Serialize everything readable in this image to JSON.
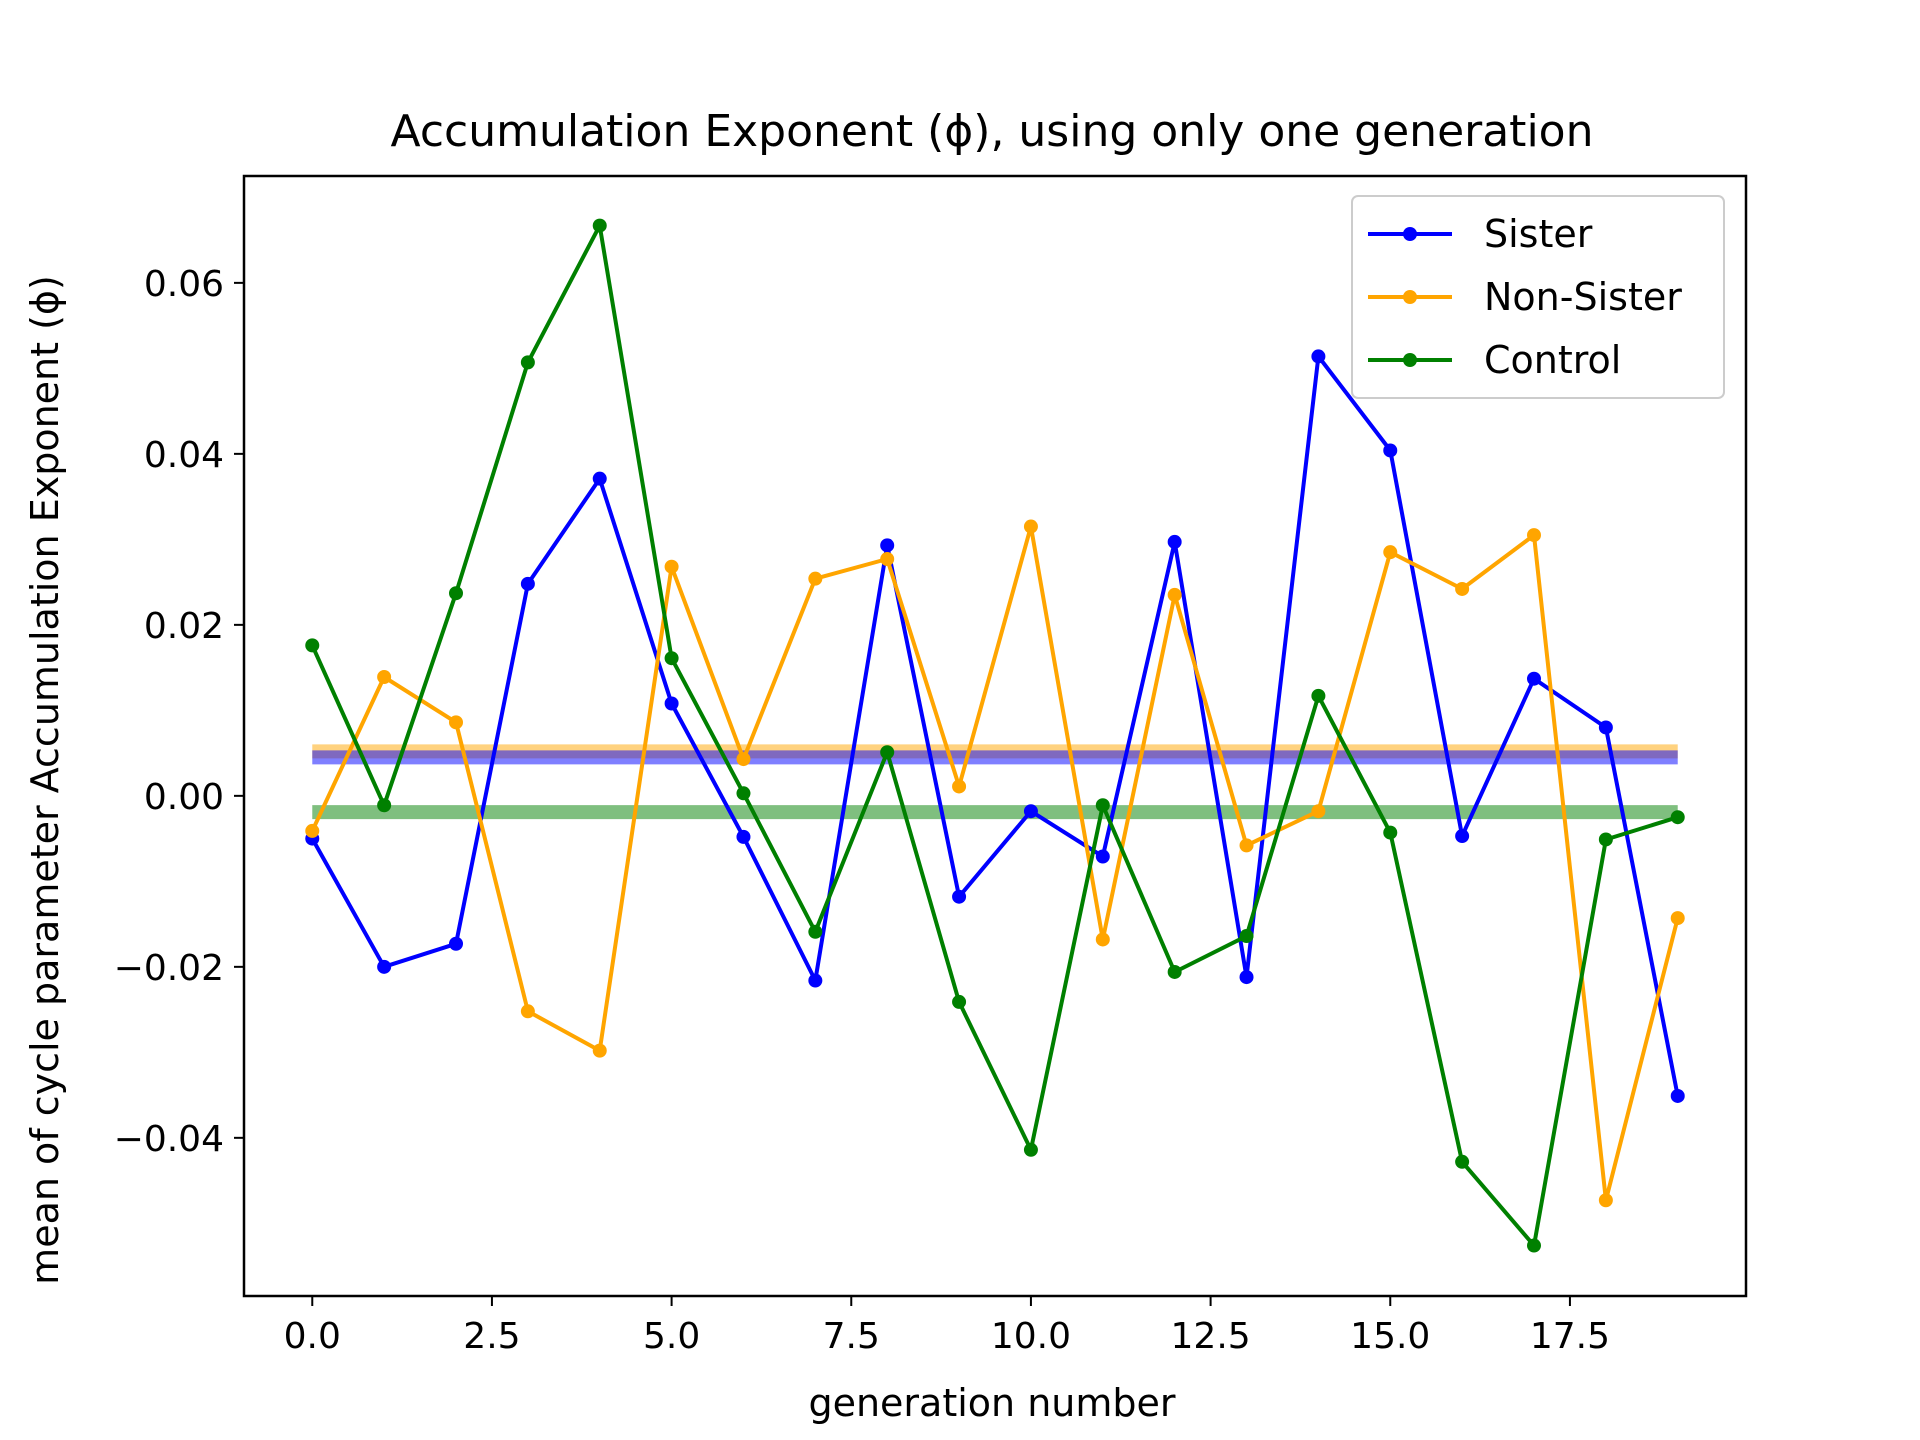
{
  "chart_data": {
    "type": "line",
    "title": "Accumulation Exponent (ϕ), using only one generation",
    "xlabel": "generation number",
    "ylabel": "mean of cycle parameter Accumulation Exponent (ϕ)",
    "xlim": [
      -0.95,
      19.95
    ],
    "ylim": [
      -0.0585,
      0.0725
    ],
    "x_ticks": [
      0,
      2.5,
      5,
      7.5,
      10,
      12.5,
      15,
      17.5
    ],
    "x_tick_labels": [
      "0.0",
      "2.5",
      "5.0",
      "7.5",
      "10.0",
      "12.5",
      "15.0",
      "17.5"
    ],
    "y_ticks": [
      -0.04,
      -0.02,
      0,
      0.02,
      0.04,
      0.06
    ],
    "y_tick_labels": [
      "−0.04",
      "−0.02",
      "0.00",
      "0.02",
      "0.04",
      "0.06"
    ],
    "x": [
      0,
      1,
      2,
      3,
      4,
      5,
      6,
      7,
      8,
      9,
      10,
      11,
      12,
      13,
      14,
      15,
      16,
      17,
      18,
      19
    ],
    "series": [
      {
        "name": "Sister",
        "color": "#0000ff",
        "mean": 0.0045,
        "values": [
          -0.005,
          -0.02,
          -0.0173,
          0.0248,
          0.0371,
          0.0108,
          -0.0048,
          -0.0216,
          0.0293,
          -0.0118,
          -0.0018,
          -0.0071,
          0.0297,
          -0.0212,
          0.0514,
          0.0404,
          -0.0047,
          0.0137,
          0.008,
          -0.0351
        ]
      },
      {
        "name": "Non-Sister",
        "color": "#ffa500",
        "mean": 0.0052,
        "values": [
          -0.0041,
          0.0139,
          0.0086,
          -0.0252,
          -0.0298,
          0.0268,
          0.0043,
          0.0254,
          0.0277,
          0.0011,
          0.0315,
          -0.0168,
          0.0235,
          -0.0058,
          -0.0018,
          0.0285,
          0.0242,
          0.0305,
          -0.0473,
          -0.0143
        ]
      },
      {
        "name": "Control",
        "color": "#008000",
        "mean": -0.0019,
        "values": [
          0.0176,
          -0.0011,
          0.0237,
          0.0507,
          0.0667,
          0.0161,
          0.0003,
          -0.0159,
          0.0051,
          -0.0241,
          -0.0414,
          -0.0011,
          -0.0206,
          -0.0164,
          0.0117,
          -0.0043,
          -0.0428,
          -0.0526,
          -0.0051,
          -0.0025
        ]
      }
    ],
    "grid": false,
    "legend_position": "top-right"
  }
}
